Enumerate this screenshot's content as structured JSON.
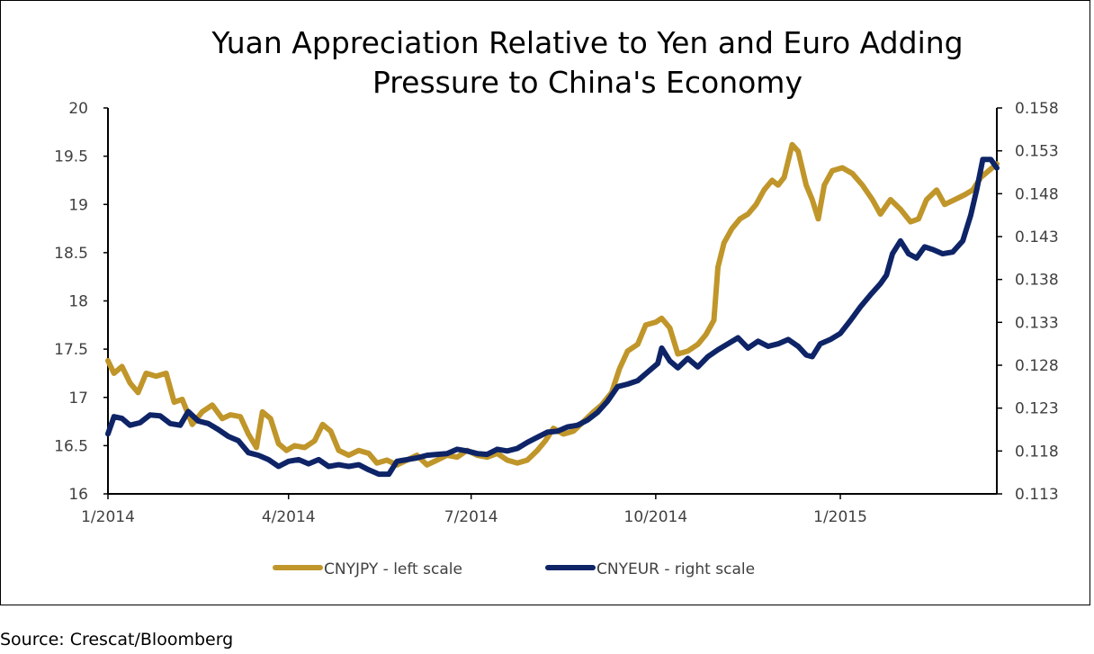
{
  "chart_data": {
    "type": "line",
    "title_lines": [
      "Yuan Appreciation Relative to Yen and Euro Adding",
      "Pressure to China's Economy"
    ],
    "x_axis": {
      "range": [
        "2014-01-01",
        "2015-03-20"
      ],
      "ticks": [
        {
          "date": "2014-01-01",
          "label": "1/2014"
        },
        {
          "date": "2014-04-01",
          "label": "4/2014"
        },
        {
          "date": "2014-07-01",
          "label": "7/2014"
        },
        {
          "date": "2014-10-01",
          "label": "10/2014"
        },
        {
          "date": "2015-01-01",
          "label": "1/2015"
        }
      ]
    },
    "y_left": {
      "min": 16,
      "max": 20,
      "step": 0.5,
      "tick_labels": [
        "16",
        "16.5",
        "17",
        "17.5",
        "18",
        "18.5",
        "19",
        "19.5",
        "20"
      ]
    },
    "y_right": {
      "min": 0.113,
      "max": 0.158,
      "step": 0.005,
      "tick_labels": [
        "0.113",
        "0.118",
        "0.123",
        "0.128",
        "0.133",
        "0.138",
        "0.143",
        "0.148",
        "0.153",
        "0.158"
      ]
    },
    "series": [
      {
        "name": "CNYJPY - left scale",
        "axis": "left",
        "color": "#C0962A",
        "points": [
          [
            "2014-01-01",
            17.38
          ],
          [
            "2014-01-04",
            17.25
          ],
          [
            "2014-01-08",
            17.32
          ],
          [
            "2014-01-12",
            17.15
          ],
          [
            "2014-01-16",
            17.05
          ],
          [
            "2014-01-20",
            17.25
          ],
          [
            "2014-01-25",
            17.22
          ],
          [
            "2014-01-30",
            17.25
          ],
          [
            "2014-02-03",
            16.95
          ],
          [
            "2014-02-07",
            16.98
          ],
          [
            "2014-02-12",
            16.72
          ],
          [
            "2014-02-17",
            16.85
          ],
          [
            "2014-02-22",
            16.92
          ],
          [
            "2014-02-27",
            16.78
          ],
          [
            "2014-03-03",
            16.82
          ],
          [
            "2014-03-08",
            16.8
          ],
          [
            "2014-03-12",
            16.62
          ],
          [
            "2014-03-16",
            16.48
          ],
          [
            "2014-03-19",
            16.85
          ],
          [
            "2014-03-23",
            16.78
          ],
          [
            "2014-03-27",
            16.52
          ],
          [
            "2014-03-31",
            16.45
          ],
          [
            "2014-04-04",
            16.5
          ],
          [
            "2014-04-09",
            16.48
          ],
          [
            "2014-04-14",
            16.55
          ],
          [
            "2014-04-18",
            16.72
          ],
          [
            "2014-04-22",
            16.65
          ],
          [
            "2014-04-26",
            16.45
          ],
          [
            "2014-05-01",
            16.4
          ],
          [
            "2014-05-06",
            16.45
          ],
          [
            "2014-05-11",
            16.42
          ],
          [
            "2014-05-15",
            16.32
          ],
          [
            "2014-05-20",
            16.35
          ],
          [
            "2014-05-25",
            16.3
          ],
          [
            "2014-05-30",
            16.35
          ],
          [
            "2014-06-04",
            16.4
          ],
          [
            "2014-06-09",
            16.3
          ],
          [
            "2014-06-14",
            16.35
          ],
          [
            "2014-06-19",
            16.4
          ],
          [
            "2014-06-24",
            16.38
          ],
          [
            "2014-06-29",
            16.45
          ],
          [
            "2014-07-04",
            16.4
          ],
          [
            "2014-07-09",
            16.38
          ],
          [
            "2014-07-14",
            16.42
          ],
          [
            "2014-07-19",
            16.35
          ],
          [
            "2014-07-24",
            16.32
          ],
          [
            "2014-07-29",
            16.35
          ],
          [
            "2014-08-03",
            16.45
          ],
          [
            "2014-08-07",
            16.55
          ],
          [
            "2014-08-11",
            16.68
          ],
          [
            "2014-08-16",
            16.62
          ],
          [
            "2014-08-21",
            16.65
          ],
          [
            "2014-08-26",
            16.75
          ],
          [
            "2014-08-31",
            16.85
          ],
          [
            "2014-09-04",
            16.92
          ],
          [
            "2014-09-09",
            17.05
          ],
          [
            "2014-09-13",
            17.3
          ],
          [
            "2014-09-17",
            17.48
          ],
          [
            "2014-09-22",
            17.55
          ],
          [
            "2014-09-26",
            17.75
          ],
          [
            "2014-10-01",
            17.78
          ],
          [
            "2014-10-04",
            17.82
          ],
          [
            "2014-10-08",
            17.72
          ],
          [
            "2014-10-12",
            17.45
          ],
          [
            "2014-10-17",
            17.48
          ],
          [
            "2014-10-22",
            17.55
          ],
          [
            "2014-10-26",
            17.65
          ],
          [
            "2014-10-30",
            17.8
          ],
          [
            "2014-11-01",
            18.35
          ],
          [
            "2014-11-04",
            18.6
          ],
          [
            "2014-11-08",
            18.75
          ],
          [
            "2014-11-12",
            18.85
          ],
          [
            "2014-11-16",
            18.9
          ],
          [
            "2014-11-20",
            19.0
          ],
          [
            "2014-11-24",
            19.15
          ],
          [
            "2014-11-28",
            19.25
          ],
          [
            "2014-12-01",
            19.2
          ],
          [
            "2014-12-04",
            19.28
          ],
          [
            "2014-12-08",
            19.62
          ],
          [
            "2014-12-11",
            19.55
          ],
          [
            "2014-12-15",
            19.2
          ],
          [
            "2014-12-18",
            19.05
          ],
          [
            "2014-12-21",
            18.85
          ],
          [
            "2014-12-24",
            19.2
          ],
          [
            "2014-12-28",
            19.35
          ],
          [
            "2015-01-02",
            19.38
          ],
          [
            "2015-01-07",
            19.32
          ],
          [
            "2015-01-12",
            19.2
          ],
          [
            "2015-01-17",
            19.05
          ],
          [
            "2015-01-21",
            18.9
          ],
          [
            "2015-01-26",
            19.05
          ],
          [
            "2015-01-31",
            18.95
          ],
          [
            "2015-02-05",
            18.82
          ],
          [
            "2015-02-09",
            18.85
          ],
          [
            "2015-02-13",
            19.05
          ],
          [
            "2015-02-18",
            19.15
          ],
          [
            "2015-02-22",
            19.0
          ],
          [
            "2015-02-27",
            19.05
          ],
          [
            "2015-03-04",
            19.1
          ],
          [
            "2015-03-08",
            19.15
          ],
          [
            "2015-03-12",
            19.28
          ],
          [
            "2015-03-16",
            19.35
          ],
          [
            "2015-03-20",
            19.42
          ]
        ]
      },
      {
        "name": "CNYEUR - right scale",
        "axis": "right",
        "color": "#0E2467",
        "points": [
          [
            "2014-01-01",
            0.12
          ],
          [
            "2014-01-04",
            0.122
          ],
          [
            "2014-01-08",
            0.1218
          ],
          [
            "2014-01-12",
            0.121
          ],
          [
            "2014-01-17",
            0.1213
          ],
          [
            "2014-01-22",
            0.1222
          ],
          [
            "2014-01-27",
            0.1221
          ],
          [
            "2014-02-01",
            0.1212
          ],
          [
            "2014-02-06",
            0.121
          ],
          [
            "2014-02-10",
            0.1226
          ],
          [
            "2014-02-15",
            0.1215
          ],
          [
            "2014-02-20",
            0.1212
          ],
          [
            "2014-02-25",
            0.1205
          ],
          [
            "2014-03-02",
            0.1197
          ],
          [
            "2014-03-07",
            0.1192
          ],
          [
            "2014-03-12",
            0.1178
          ],
          [
            "2014-03-17",
            0.1175
          ],
          [
            "2014-03-22",
            0.117
          ],
          [
            "2014-03-27",
            0.1162
          ],
          [
            "2014-04-01",
            0.1168
          ],
          [
            "2014-04-06",
            0.117
          ],
          [
            "2014-04-11",
            0.1165
          ],
          [
            "2014-04-16",
            0.117
          ],
          [
            "2014-04-21",
            0.1162
          ],
          [
            "2014-04-26",
            0.1164
          ],
          [
            "2014-05-01",
            0.1162
          ],
          [
            "2014-05-06",
            0.1164
          ],
          [
            "2014-05-11",
            0.1158
          ],
          [
            "2014-05-16",
            0.1153
          ],
          [
            "2014-05-21",
            0.1153
          ],
          [
            "2014-05-25",
            0.1168
          ],
          [
            "2014-05-30",
            0.117
          ],
          [
            "2014-06-04",
            0.1172
          ],
          [
            "2014-06-09",
            0.1175
          ],
          [
            "2014-06-14",
            0.1176
          ],
          [
            "2014-06-19",
            0.1177
          ],
          [
            "2014-06-24",
            0.1182
          ],
          [
            "2014-06-29",
            0.118
          ],
          [
            "2014-07-04",
            0.1177
          ],
          [
            "2014-07-09",
            0.1176
          ],
          [
            "2014-07-14",
            0.1182
          ],
          [
            "2014-07-19",
            0.118
          ],
          [
            "2014-07-24",
            0.1183
          ],
          [
            "2014-07-29",
            0.119
          ],
          [
            "2014-08-03",
            0.1196
          ],
          [
            "2014-08-08",
            0.1202
          ],
          [
            "2014-08-13",
            0.1203
          ],
          [
            "2014-08-18",
            0.1208
          ],
          [
            "2014-08-23",
            0.121
          ],
          [
            "2014-08-28",
            0.1216
          ],
          [
            "2014-09-02",
            0.1225
          ],
          [
            "2014-09-07",
            0.1238
          ],
          [
            "2014-09-12",
            0.1255
          ],
          [
            "2014-09-17",
            0.1258
          ],
          [
            "2014-09-22",
            0.1262
          ],
          [
            "2014-09-27",
            0.1272
          ],
          [
            "2014-10-02",
            0.1282
          ],
          [
            "2014-10-04",
            0.13
          ],
          [
            "2014-10-08",
            0.1285
          ],
          [
            "2014-10-12",
            0.1277
          ],
          [
            "2014-10-17",
            0.1288
          ],
          [
            "2014-10-22",
            0.1278
          ],
          [
            "2014-10-27",
            0.129
          ],
          [
            "2014-11-01",
            0.1298
          ],
          [
            "2014-11-06",
            0.1305
          ],
          [
            "2014-11-11",
            0.1312
          ],
          [
            "2014-11-16",
            0.13
          ],
          [
            "2014-11-21",
            0.1308
          ],
          [
            "2014-11-26",
            0.1302
          ],
          [
            "2014-12-01",
            0.1305
          ],
          [
            "2014-12-06",
            0.131
          ],
          [
            "2014-12-11",
            0.1302
          ],
          [
            "2014-12-15",
            0.1292
          ],
          [
            "2014-12-18",
            0.129
          ],
          [
            "2014-12-22",
            0.1305
          ],
          [
            "2014-12-27",
            0.131
          ],
          [
            "2015-01-01",
            0.1317
          ],
          [
            "2015-01-06",
            0.1332
          ],
          [
            "2015-01-11",
            0.1348
          ],
          [
            "2015-01-16",
            0.1362
          ],
          [
            "2015-01-21",
            0.1375
          ],
          [
            "2015-01-24",
            0.1385
          ],
          [
            "2015-01-27",
            0.141
          ],
          [
            "2015-01-31",
            0.1425
          ],
          [
            "2015-02-04",
            0.141
          ],
          [
            "2015-02-08",
            0.1405
          ],
          [
            "2015-02-12",
            0.1418
          ],
          [
            "2015-02-16",
            0.1415
          ],
          [
            "2015-02-21",
            0.141
          ],
          [
            "2015-02-26",
            0.1412
          ],
          [
            "2015-03-03",
            0.1425
          ],
          [
            "2015-03-07",
            0.1455
          ],
          [
            "2015-03-10",
            0.1485
          ],
          [
            "2015-03-13",
            0.152
          ],
          [
            "2015-03-17",
            0.152
          ],
          [
            "2015-03-20",
            0.151
          ]
        ]
      }
    ],
    "legend": {
      "position": "bottom"
    },
    "grid": false
  },
  "source_text": "Source: Crescat/Bloomberg"
}
